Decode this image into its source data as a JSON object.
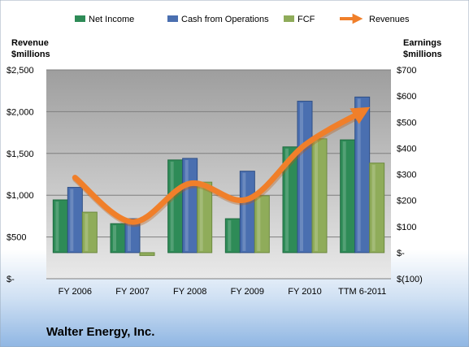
{
  "chart_data": {
    "type": "bar",
    "categories": [
      "FY 2006",
      "FY 2007",
      "FY 2008",
      "FY 2009",
      "FY 2010",
      "TTM 6-2011"
    ],
    "series": [
      {
        "name": "Net Income",
        "axis": "right",
        "color": "#2e8b57",
        "values": [
          202,
          111,
          355,
          130,
          405,
          432
        ]
      },
      {
        "name": "Cash from Operations",
        "axis": "right",
        "color": "#4a6fb0",
        "values": [
          250,
          130,
          361,
          312,
          580,
          596
        ]
      },
      {
        "name": "FCF",
        "axis": "right",
        "color": "#8fac5a",
        "values": [
          155,
          -11,
          270,
          218,
          436,
          343
        ]
      }
    ],
    "line_series": {
      "name": "Revenues",
      "axis": "left",
      "color": "#f07f2a",
      "values": [
        1210,
        680,
        1140,
        950,
        1600,
        2000
      ]
    },
    "left_axis": {
      "title_line1": "Revenue",
      "title_line2": "$millions",
      "ylim": [
        0,
        2500
      ],
      "ticks": [
        0,
        500,
        1000,
        1500,
        2000,
        2500
      ],
      "tick_labels": [
        "$-",
        "$500",
        "$1,000",
        "$1,500",
        "$2,000",
        "$2,500"
      ]
    },
    "right_axis": {
      "title_line1": "Earnings",
      "title_line2": "$millions",
      "ylim": [
        -100,
        700
      ],
      "ticks": [
        -100,
        0,
        100,
        200,
        300,
        400,
        500,
        600,
        700
      ],
      "tick_labels": [
        "$(100)",
        "$-",
        "$100",
        "$200",
        "$300",
        "$400",
        "$500",
        "$600",
        "$700"
      ]
    },
    "company": "Walter Energy, Inc.",
    "legend_position": "top",
    "grid": true
  }
}
